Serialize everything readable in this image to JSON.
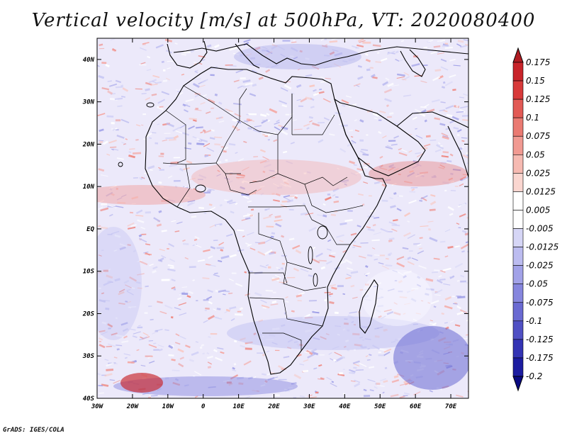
{
  "title": "Vertical velocity [m/s] at 500hPa, VT: 2020080400",
  "credit": "GrADS: IGES/COLA",
  "map": {
    "lon_range": [
      -30,
      75
    ],
    "lat_range": [
      -40,
      45
    ],
    "lat_labels": [
      "40N",
      "30N",
      "20N",
      "10N",
      "EQ",
      "10S",
      "20S",
      "30S",
      "40S"
    ],
    "lat_values": [
      40,
      30,
      20,
      10,
      0,
      -10,
      -20,
      -30,
      -40
    ],
    "lon_labels": [
      "30W",
      "20W",
      "10W",
      "0",
      "10E",
      "20E",
      "30E",
      "40E",
      "50E",
      "60E",
      "70E"
    ],
    "lon_values": [
      -30,
      -20,
      -10,
      0,
      10,
      20,
      30,
      40,
      50,
      60,
      70
    ]
  },
  "colorbar": {
    "labels": [
      "0.175",
      "0.15",
      "0.125",
      "0.1",
      "0.075",
      "0.05",
      "0.025",
      "0.0125",
      "0.005",
      "-0.005",
      "-0.0125",
      "-0.025",
      "-0.05",
      "-0.075",
      "-0.1",
      "-0.125",
      "-0.175",
      "-0.2"
    ],
    "colors": [
      "#b01c22",
      "#c8242a",
      "#d83a3a",
      "#e25a55",
      "#ea7a72",
      "#f19a92",
      "#f6bab2",
      "#fad6d0",
      "#ffffff",
      "#ffffff",
      "#d6d6f6",
      "#bcbcf0",
      "#a2a2e8",
      "#8686de",
      "#6a6ad2",
      "#5050c4",
      "#3434b4",
      "#1c1ca0",
      "#0a0a82"
    ]
  }
}
